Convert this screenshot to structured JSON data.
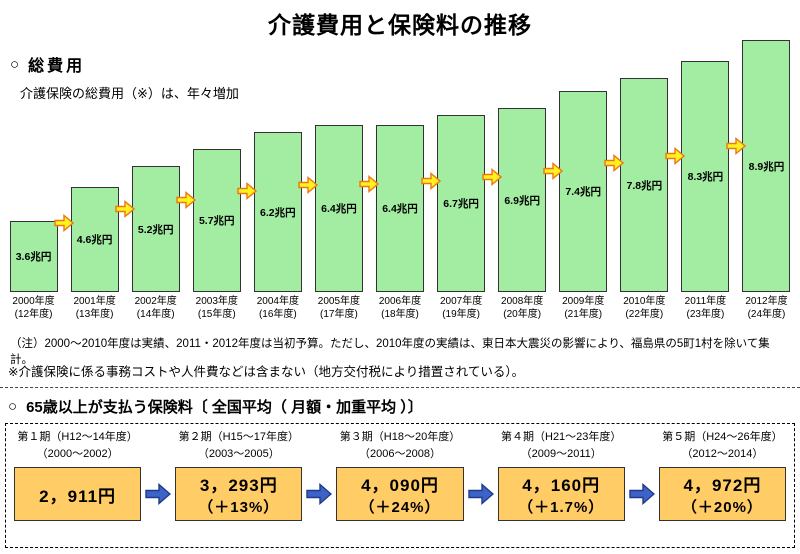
{
  "page": {
    "title": "介護費用と保険料の推移"
  },
  "section_cost": {
    "marker": "○",
    "heading": "総費用",
    "subtitle": "介護保険の総費用（※）は、年々増加",
    "note1": "（注）2000～2010年度は実績、2011・2012年度は当初予算。ただし、2010年度の実績は、東日本大震災の影響により、福島県の5町1村を除いて集計。",
    "note2": "※介護保険に係る事務コストや人件費などは含まない（地方交付税により措置されている）。"
  },
  "chart_data": {
    "type": "bar",
    "title": "総費用",
    "unit": "兆円",
    "categories": [
      "2000年度",
      "2001年度",
      "2002年度",
      "2003年度",
      "2004年度",
      "2005年度",
      "2006年度",
      "2007年度",
      "2008年度",
      "2009年度",
      "2010年度",
      "2011年度",
      "2012年度"
    ],
    "sub_categories": [
      "(12年度)",
      "(13年度)",
      "(14年度)",
      "(15年度)",
      "(16年度)",
      "(17年度)",
      "(18年度)",
      "(19年度)",
      "(20年度)",
      "(21年度)",
      "(22年度)",
      "(23年度)",
      "(24年度)"
    ],
    "values": [
      3.6,
      4.6,
      5.2,
      5.7,
      6.2,
      6.4,
      6.4,
      6.7,
      6.9,
      7.4,
      7.8,
      8.3,
      8.9
    ],
    "value_labels": [
      "3.6兆円",
      "4.6兆円",
      "5.2兆円",
      "5.7兆円",
      "6.2兆円",
      "6.4兆円",
      "6.4兆円",
      "6.7兆円",
      "6.9兆円",
      "7.4兆円",
      "7.8兆円",
      "8.3兆円",
      "8.9兆円"
    ],
    "ylim": [
      0,
      9.5
    ],
    "grid": false,
    "legend": false,
    "bar_color": "#A3EDA3",
    "bar_border": "#333333",
    "arrow_fill": "#FFF21E",
    "arrow_stroke": "#E87915"
  },
  "section_premium": {
    "marker": "○",
    "heading": "65歳以上が支払う保険料〔 全国平均（ 月額・加重平均 ）〕",
    "periods": [
      {
        "name": "第１期（H12～14年度）",
        "years": "（2000～2002）",
        "amount": "2，911円",
        "change": ""
      },
      {
        "name": "第２期（H15～17年度）",
        "years": "（2003～2005）",
        "amount": "3，293円",
        "change": "（＋13%）"
      },
      {
        "name": "第３期（H18～20年度）",
        "years": "（2006～2008）",
        "amount": "4，090円",
        "change": "（＋24%）"
      },
      {
        "name": "第４期（H21～23年度）",
        "years": "（2009～2011）",
        "amount": "4，160円",
        "change": "（＋1.7%）"
      },
      {
        "name": "第５期（H24～26年度）",
        "years": "（2012～2014）",
        "amount": "4，972円",
        "change": "（＋20%）"
      }
    ],
    "box_fill": "#FFCC66",
    "box_border": "#333333",
    "arrow_fill": "#3E63C8",
    "arrow_stroke": "#1E3A8A"
  }
}
